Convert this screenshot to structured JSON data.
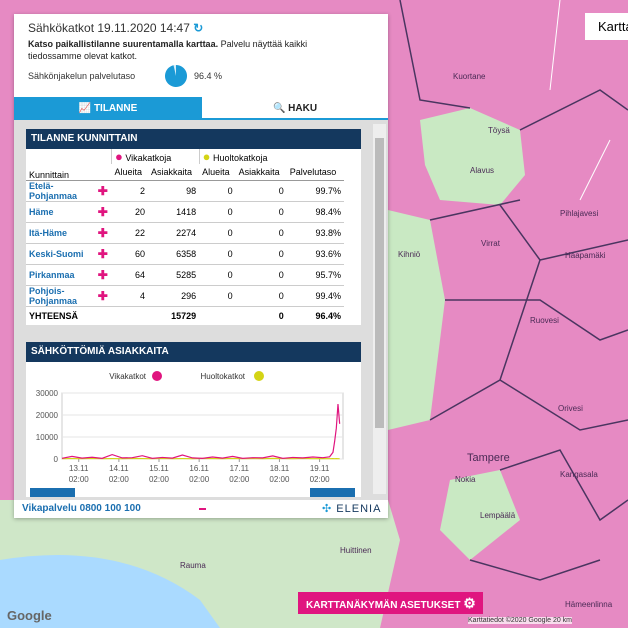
{
  "header": {
    "title": "Sähkökatkot 19.11.2020 14:47",
    "info_bold": "Katso paikallistilanne suurentamalla karttaa.",
    "info": "Palvelu näyttää kaikki tiedossamme olevat katkot.",
    "service_level": {
      "label": "Sähkönjakelun palvelutaso",
      "value": 96.4,
      "value_label": "96.4 %"
    }
  },
  "tabs": [
    "TILANNE",
    "HAKU"
  ],
  "table": {
    "title": "TILANNE KUNNITTAIN",
    "groups": [
      "Vikakatkoja",
      "Huoltokatkoja"
    ],
    "columns": [
      "Kunnittain",
      "Alueita",
      "Asiakkaita",
      "Alueita",
      "Asiakkaita",
      "Palvelutaso"
    ],
    "rows": [
      [
        "Etelä-Pohjanmaa",
        2,
        98,
        0,
        0,
        "99.7%"
      ],
      [
        "Häme",
        20,
        1418,
        0,
        0,
        "98.4%"
      ],
      [
        "Itä-Häme",
        22,
        2274,
        0,
        0,
        "93.8%"
      ],
      [
        "Keski-Suomi",
        60,
        6358,
        0,
        0,
        "93.6%"
      ],
      [
        "Pirkanmaa",
        64,
        5285,
        0,
        0,
        "95.7%"
      ],
      [
        "Pohjois-Pohjanmaa",
        4,
        296,
        0,
        0,
        "99.4%"
      ]
    ],
    "total": [
      "YHTEENSÄ",
      15729,
      0,
      "96.4%"
    ]
  },
  "chart": {
    "title": "SÄHKÖTTÖMIÄ ASIAKKAITA",
    "type": "line",
    "x": [
      -8,
      -2,
      4,
      10,
      16,
      22,
      28,
      34,
      40,
      46,
      52,
      58,
      64,
      70,
      76,
      82,
      88,
      94,
      100,
      106,
      112,
      118,
      124,
      130,
      136,
      142,
      148,
      152,
      154,
      155,
      156,
      157,
      158
    ],
    "series": [
      {
        "name": "Vikakatkot",
        "color": "#e0157f",
        "values": [
          300,
          1200,
          400,
          800,
          300,
          2000,
          500,
          600,
          1500,
          300,
          700,
          400,
          1800,
          500,
          300,
          900,
          400,
          1200,
          300,
          600,
          500,
          1400,
          300,
          700,
          500,
          900,
          600,
          1000,
          3000,
          8000,
          14000,
          25000,
          16000
        ]
      },
      {
        "name": "Huoltokatkot",
        "color": "#d4d415",
        "values": [
          150,
          200,
          150,
          250,
          150,
          200,
          150,
          300,
          200,
          150,
          250,
          150,
          200,
          150,
          300,
          200,
          150,
          250,
          150,
          200,
          150,
          300,
          200,
          150,
          250,
          150,
          200,
          150,
          200,
          150,
          200,
          150,
          150
        ]
      }
    ],
    "xlim": [
      -8,
      160
    ],
    "ylim": [
      0,
      30000
    ],
    "yticks": [
      0,
      10000,
      20000,
      30000
    ],
    "xticks": [
      {
        "value": 2,
        "label": "13.11"
      },
      {
        "value": 26,
        "label": "14.11"
      },
      {
        "value": 50,
        "label": "15.11"
      },
      {
        "value": 74,
        "label": "16.11"
      },
      {
        "value": 98,
        "label": "17.11"
      },
      {
        "value": 122,
        "label": "18.11"
      },
      {
        "value": 146,
        "label": "19.11"
      }
    ],
    "xtick_time": "02:00"
  },
  "footer": {
    "phone": "Vikapalvelu 0800 100 100",
    "brand": "ELENIA"
  },
  "map": {
    "button": "Kartta",
    "settings": "KARTTANÄKYMÄN ASETUKSET",
    "attribution": "Karttatiedot ©2020 Google",
    "scale": "20 km",
    "logo": "Google",
    "places": [
      "Kuortane",
      "Töysä",
      "Alavus",
      "Virrat",
      "Kihniö",
      "Ruovesi",
      "Pihlajavesi",
      "Haapamäki",
      "Orivesi",
      "Tampere",
      "Kangasala",
      "Nokia",
      "Lempäälä",
      "Huittinen",
      "Rauma",
      "Hämeenlinna"
    ]
  }
}
